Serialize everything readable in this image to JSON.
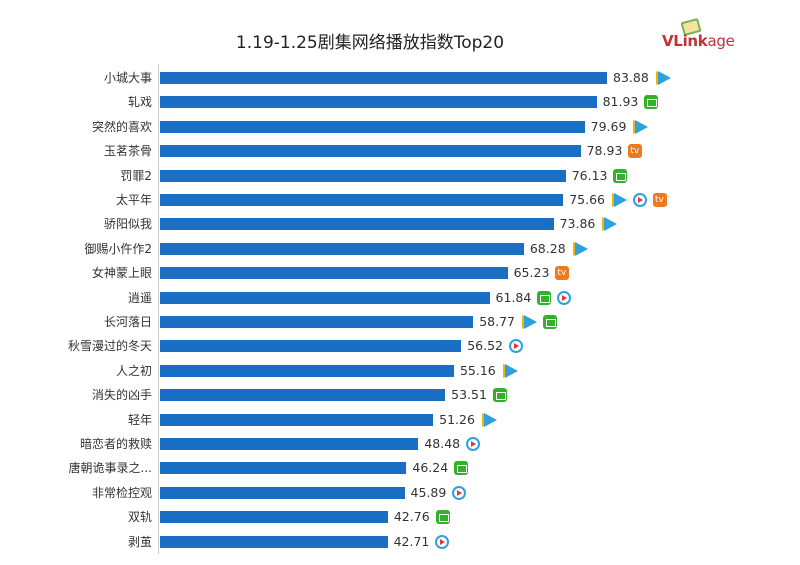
{
  "chart_data": {
    "type": "bar",
    "orientation": "horizontal",
    "title": "1.19-1.25剧集网络播放指数Top20",
    "logo": "VLinkage",
    "categories": [
      "小城大事",
      "轧戏",
      "突然的喜欢",
      "玉茗茶骨",
      "罚罪2",
      "太平年",
      "骄阳似我",
      "御赐小仵作2",
      "女神蒙上眼",
      "逍遥",
      "长河落日",
      "秋雪漫过的冬天",
      "人之初",
      "消失的凶手",
      "轻年",
      "暗恋者的救赎",
      "唐朝诡事录之...",
      "非常检控观",
      "双轨",
      "剥茧"
    ],
    "values": [
      83.88,
      81.93,
      79.69,
      78.93,
      76.13,
      75.66,
      73.86,
      68.28,
      65.23,
      61.84,
      58.77,
      56.52,
      55.16,
      53.51,
      51.26,
      48.48,
      46.24,
      45.89,
      42.76,
      42.71
    ],
    "labels": [
      "83.88",
      "81.93",
      "79.69",
      "78.93",
      "76.13",
      "75.66",
      "73.86",
      "68.28",
      "65.23",
      "61.84",
      "58.77",
      "56.52",
      "55.16",
      "53.51",
      "51.26",
      "48.48",
      "46.24",
      "45.89",
      "42.76",
      "42.71"
    ],
    "platform_icons": [
      [
        "tencent"
      ],
      [
        "iqiyi"
      ],
      [
        "tencent"
      ],
      [
        "mango"
      ],
      [
        "iqiyi"
      ],
      [
        "tencent",
        "youku",
        "mango"
      ],
      [
        "tencent"
      ],
      [
        "tencent"
      ],
      [
        "mango"
      ],
      [
        "iqiyi",
        "youku"
      ],
      [
        "tencent",
        "iqiyi"
      ],
      [
        "youku"
      ],
      [
        "tencent"
      ],
      [
        "iqiyi"
      ],
      [
        "tencent"
      ],
      [
        "youku"
      ],
      [
        "iqiyi"
      ],
      [
        "youku"
      ],
      [
        "iqiyi"
      ],
      [
        "youku"
      ]
    ],
    "xlim": [
      0,
      83.88
    ],
    "grid": false,
    "bar_color": "#1a6fc4"
  }
}
